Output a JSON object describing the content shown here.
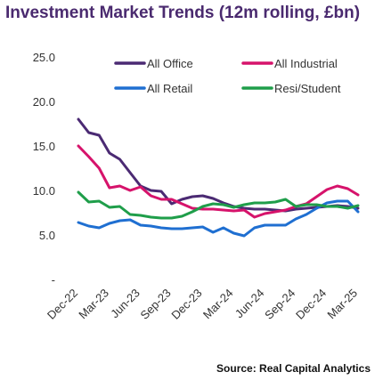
{
  "title": "Investment Market Trends (12m rolling, £bn)",
  "source": "Source: Real Capital Analytics",
  "chart_data": {
    "type": "line",
    "title": "Investment Market Trends (12m rolling, £bn)",
    "xlabel": "",
    "ylabel": "",
    "ylim": [
      0,
      25
    ],
    "yticks": [
      "-",
      "5.0",
      "10.0",
      "15.0",
      "20.0",
      "25.0"
    ],
    "grid": false,
    "legend_position": "top",
    "x": [
      "Dec-22",
      "Jan-23",
      "Feb-23",
      "Mar-23",
      "Apr-23",
      "May-23",
      "Jun-23",
      "Jul-23",
      "Aug-23",
      "Sep-23",
      "Oct-23",
      "Nov-23",
      "Dec-23",
      "Jan-24",
      "Feb-24",
      "Mar-24",
      "Apr-24",
      "May-24",
      "Jun-24",
      "Jul-24",
      "Aug-24",
      "Sep-24",
      "Oct-24",
      "Nov-24",
      "Dec-24",
      "Jan-25",
      "Feb-25",
      "Mar-25"
    ],
    "xtick_labels": [
      "Dec-22",
      "Mar-23",
      "Jun-23",
      "Sep-23",
      "Dec-23",
      "Mar-24",
      "Jun-24",
      "Sep-24",
      "Dec-24",
      "Mar-25"
    ],
    "series": [
      {
        "name": "All Office",
        "color": "#4b2a73",
        "values": [
          18.0,
          16.5,
          16.2,
          14.2,
          13.5,
          12.0,
          10.5,
          10.0,
          9.9,
          8.5,
          9.0,
          9.3,
          9.4,
          9.1,
          8.6,
          8.2,
          8.0,
          7.9,
          7.9,
          7.8,
          7.7,
          7.9,
          8.0,
          8.1,
          8.2,
          8.3,
          8.2,
          8.0
        ]
      },
      {
        "name": "All Industrial",
        "color": "#d6136b",
        "values": [
          15.0,
          13.8,
          12.5,
          10.3,
          10.5,
          10.0,
          10.4,
          9.4,
          9.0,
          9.0,
          8.5,
          8.0,
          7.9,
          7.9,
          7.8,
          7.7,
          7.8,
          7.0,
          7.4,
          7.6,
          7.8,
          8.2,
          8.5,
          9.3,
          10.1,
          10.5,
          10.2,
          9.5
        ]
      },
      {
        "name": "All Retail",
        "color": "#1f6fd1",
        "values": [
          6.4,
          6.0,
          5.8,
          6.3,
          6.6,
          6.7,
          6.1,
          6.0,
          5.8,
          5.7,
          5.7,
          5.8,
          5.9,
          5.3,
          5.8,
          5.2,
          4.9,
          5.8,
          6.1,
          6.1,
          6.1,
          6.8,
          7.3,
          8.0,
          8.6,
          8.8,
          8.8,
          7.6
        ]
      },
      {
        "name": "Resi/Student",
        "color": "#1f9e4a",
        "values": [
          9.8,
          8.7,
          8.8,
          8.1,
          8.2,
          7.3,
          7.2,
          7.0,
          6.9,
          6.9,
          7.1,
          7.6,
          8.2,
          8.5,
          8.4,
          8.1,
          8.4,
          8.6,
          8.6,
          8.7,
          9.0,
          8.2,
          8.4,
          8.4,
          8.2,
          8.2,
          8.0,
          8.3
        ]
      }
    ]
  }
}
